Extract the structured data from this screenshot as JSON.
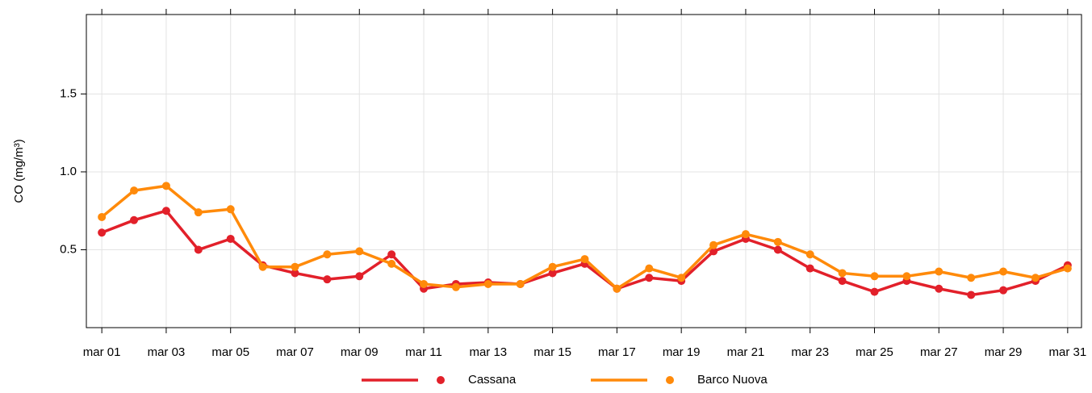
{
  "chart_data": {
    "type": "line",
    "y_label": "CO (mg/m³)",
    "x": [
      1,
      2,
      3,
      4,
      5,
      6,
      7,
      8,
      9,
      10,
      11,
      12,
      13,
      14,
      15,
      16,
      17,
      18,
      19,
      20,
      21,
      22,
      23,
      24,
      25,
      26,
      27,
      28,
      29,
      30,
      31
    ],
    "xlim": [
      0.52,
      31.43
    ],
    "xticks": [
      {
        "value": 1,
        "label": "mar 01"
      },
      {
        "value": 3,
        "label": "mar 03"
      },
      {
        "value": 5,
        "label": "mar 05"
      },
      {
        "value": 7,
        "label": "mar 07"
      },
      {
        "value": 9,
        "label": "mar 09"
      },
      {
        "value": 11,
        "label": "mar 11"
      },
      {
        "value": 13,
        "label": "mar 13"
      },
      {
        "value": 15,
        "label": "mar 15"
      },
      {
        "value": 17,
        "label": "mar 17"
      },
      {
        "value": 19,
        "label": "mar 19"
      },
      {
        "value": 21,
        "label": "mar 21"
      },
      {
        "value": 23,
        "label": "mar 23"
      },
      {
        "value": 25,
        "label": "mar 25"
      },
      {
        "value": 27,
        "label": "mar 27"
      },
      {
        "value": 29,
        "label": "mar 29"
      },
      {
        "value": 31,
        "label": "mar 31"
      }
    ],
    "ylim": [
      0,
      2.01
    ],
    "yticks": [
      0.5,
      {
        "value": 1,
        "label": "1.0"
      },
      1.5
    ],
    "grid": true,
    "legend": "bottom",
    "series": [
      {
        "name": "Cassana",
        "color": "#e2202a",
        "values": [
          0.61,
          0.69,
          0.75,
          0.5,
          0.57,
          0.4,
          0.35,
          0.31,
          0.33,
          0.47,
          0.25,
          0.28,
          0.29,
          0.28,
          0.35,
          0.41,
          0.25,
          0.32,
          0.3,
          0.49,
          0.57,
          0.5,
          0.38,
          0.3,
          0.23,
          0.3,
          0.25,
          0.21,
          0.24,
          0.3,
          0.4
        ]
      },
      {
        "name": "Barco Nuova",
        "color": "#ff8a0a",
        "values": [
          0.71,
          0.88,
          0.91,
          0.74,
          0.76,
          0.39,
          0.39,
          0.47,
          0.49,
          0.41,
          0.28,
          0.26,
          0.28,
          0.28,
          0.39,
          0.44,
          0.25,
          0.38,
          0.32,
          0.53,
          0.6,
          0.55,
          0.47,
          0.35,
          0.33,
          0.33,
          0.36,
          0.32,
          0.36,
          0.32,
          0.38
        ]
      }
    ]
  }
}
